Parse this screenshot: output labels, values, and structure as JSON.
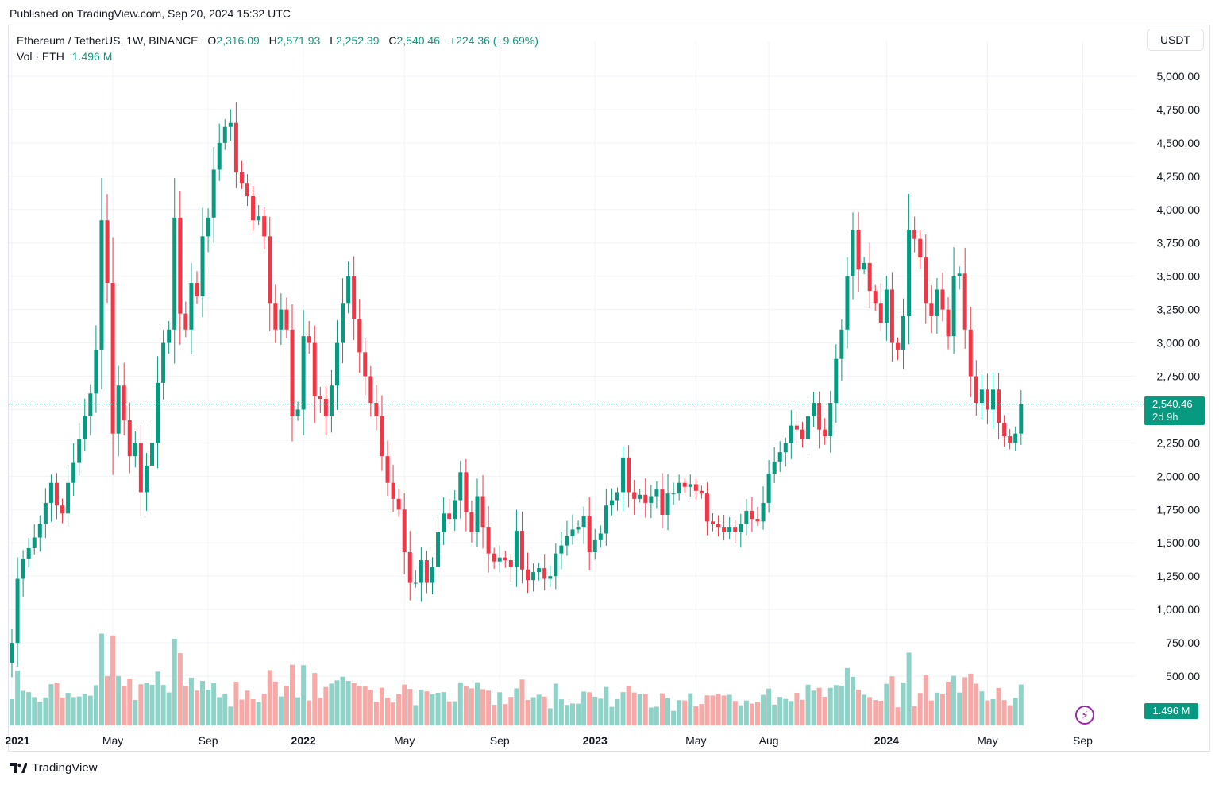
{
  "published": "Published on TradingView.com, Sep 20, 2024 15:32 UTC",
  "legend": {
    "symbol": "Ethereum / TetherUS, 1W, BINANCE",
    "o_label": "O",
    "o_value": "2,316.09",
    "h_label": "H",
    "h_value": "2,571.93",
    "l_label": "L",
    "l_value": "2,252.39",
    "c_label": "C",
    "c_value": "2,540.46",
    "change": "+224.36 (+9.69%)",
    "vol_label": "Vol · ETH",
    "vol_value": "1.496 M"
  },
  "currency": "USDT",
  "last_price_label": "2,540.46",
  "countdown": "2d 9h",
  "volume_badge": "1.496 M",
  "footer": "TradingView",
  "colors": {
    "up": "#089981",
    "down": "#f23645",
    "up_vol": "#8fd3c8",
    "down_vol": "#f7a9a7",
    "grid": "#f0f3fa"
  },
  "chart_data": {
    "type": "candlestick",
    "title": "Ethereum / TetherUS, 1W, BINANCE",
    "ylim": [
      0,
      5250
    ],
    "y_ticks": [
      "5,000.00",
      "4,750.00",
      "4,500.00",
      "4,250.00",
      "4,000.00",
      "3,750.00",
      "3,500.00",
      "3,250.00",
      "3,000.00",
      "2,750.00",
      "2,500.00",
      "2,250.00",
      "2,000.00",
      "1,750.00",
      "1,500.00",
      "1,250.00",
      "1,000.00",
      "750.00",
      "500.00"
    ],
    "y_tick_values": [
      5000,
      4750,
      4500,
      4250,
      4000,
      3750,
      3500,
      3250,
      3000,
      2750,
      2500,
      2250,
      2000,
      1750,
      1500,
      1250,
      1000,
      750,
      500
    ],
    "x_ticks": [
      {
        "label": "2021",
        "bold": true,
        "index": 0
      },
      {
        "label": "May",
        "bold": false,
        "index": 18
      },
      {
        "label": "Sep",
        "bold": false,
        "index": 35
      },
      {
        "label": "2022",
        "bold": true,
        "index": 52
      },
      {
        "label": "May",
        "bold": false,
        "index": 70
      },
      {
        "label": "Sep",
        "bold": false,
        "index": 87
      },
      {
        "label": "2023",
        "bold": true,
        "index": 104
      },
      {
        "label": "May",
        "bold": false,
        "index": 122
      },
      {
        "label": "Aug",
        "bold": false,
        "index": 135
      },
      {
        "label": "2024",
        "bold": true,
        "index": 156
      },
      {
        "label": "May",
        "bold": false,
        "index": 174
      },
      {
        "label": "Sep",
        "bold": false,
        "index": 191
      }
    ],
    "closes": [
      750,
      1230,
      1380,
      1460,
      1540,
      1640,
      1800,
      1950,
      1780,
      1720,
      1950,
      2100,
      2280,
      2450,
      2620,
      2950,
      3920,
      3450,
      2320,
      2680,
      2420,
      2150,
      2250,
      1880,
      2080,
      2250,
      2700,
      3000,
      3100,
      3940,
      3220,
      3100,
      3450,
      3350,
      3800,
      3940,
      4300,
      4500,
      4620,
      4650,
      4280,
      4200,
      4100,
      3920,
      3950,
      3800,
      3300,
      3100,
      3250,
      3100,
      2450,
      2500,
      3050,
      3000,
      2600,
      2580,
      2450,
      2680,
      3000,
      3300,
      3500,
      3180,
      2930,
      2750,
      2550,
      2450,
      2150,
      1950,
      1830,
      1750,
      1430,
      1200,
      1200,
      1370,
      1200,
      1320,
      1580,
      1720,
      1680,
      1820,
      2030,
      1730,
      1580,
      1850,
      1620,
      1420,
      1360,
      1390,
      1370,
      1320,
      1590,
      1300,
      1220,
      1280,
      1310,
      1230,
      1250,
      1420,
      1480,
      1550,
      1600,
      1620,
      1700,
      1430,
      1520,
      1570,
      1780,
      1820,
      1880,
      2140,
      1880,
      1830,
      1860,
      1800,
      1850,
      1900,
      1710,
      1870,
      1870,
      1950,
      1920,
      1940,
      1890,
      1870,
      1660,
      1640,
      1620,
      1580,
      1620,
      1580,
      1640,
      1740,
      1680,
      1660,
      1800,
      2020,
      2110,
      2180,
      2250,
      2380,
      2350,
      2280,
      2450,
      2550,
      2350,
      2300,
      2550,
      2880,
      3100,
      3500,
      3850,
      3550,
      3600,
      3390,
      3300,
      3150,
      3400,
      3000,
      2950,
      3200,
      3850,
      3780,
      3640,
      3300,
      3200,
      3400,
      3250,
      3050,
      3500,
      3520,
      3100,
      2750,
      2550,
      2650,
      2500,
      2650,
      2400,
      2300,
      2250,
      2320,
      2540
    ],
    "last_price": 2540.46,
    "last_volume": "1.496 M"
  }
}
